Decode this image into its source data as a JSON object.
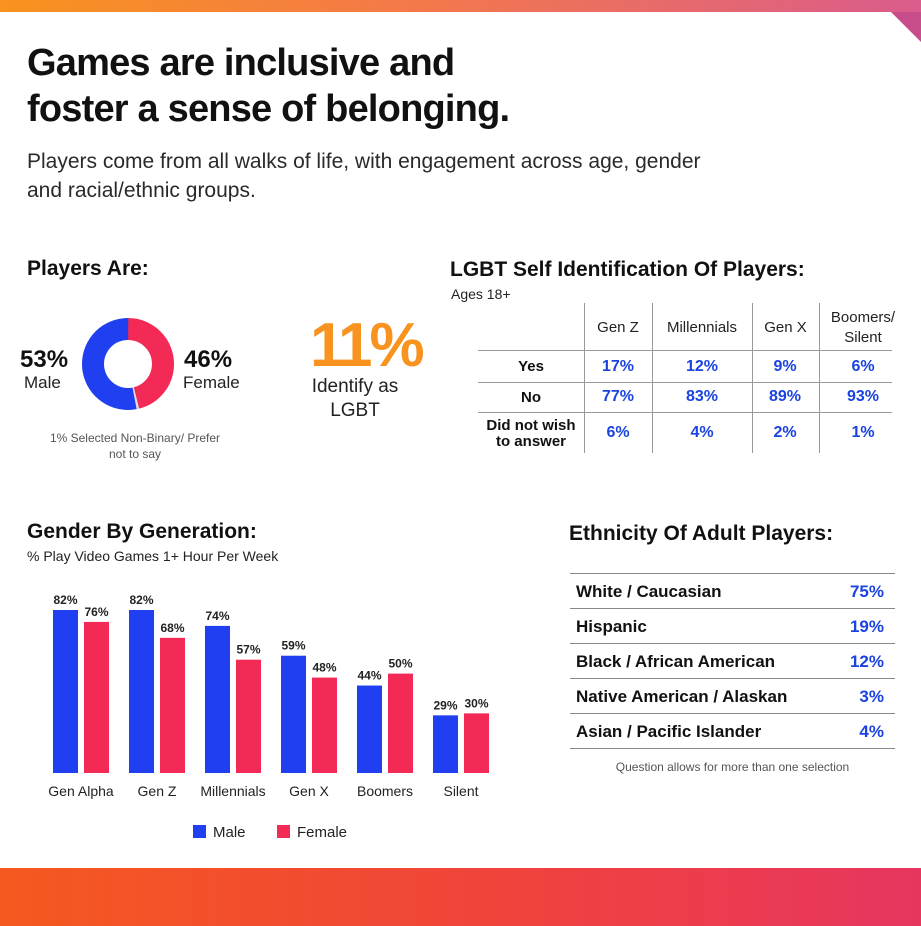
{
  "header": {
    "title": "Games are inclusive and\nfoster a sense of belonging.",
    "subtitle": "Players come from all walks of life, with engagement across age, gender and racial/ethnic groups."
  },
  "players_are": {
    "heading": "Players Are:",
    "male_pct": "53%",
    "male_label": "Male",
    "female_pct": "46%",
    "female_label": "Female",
    "note": "1% Selected Non-Binary/ Prefer not to say",
    "lgbt_pct": "11%",
    "lgbt_label": "Identify as LGBT",
    "colors": {
      "male": "#1f3ff0",
      "female": "#f22a55",
      "lgbt": "#f7931e"
    }
  },
  "lgbt_table": {
    "heading": "LGBT Self Identification Of Players:",
    "subheading": "Ages 18+",
    "columns": [
      "Gen Z",
      "Millennials",
      "Gen X",
      "Boomers/ Silent"
    ],
    "rows": [
      {
        "label": "Yes",
        "values": [
          "17%",
          "12%",
          "9%",
          "6%"
        ]
      },
      {
        "label": "No",
        "values": [
          "77%",
          "83%",
          "89%",
          "93%"
        ]
      },
      {
        "label": "Did not wish to answer",
        "values": [
          "6%",
          "4%",
          "2%",
          "1%"
        ]
      }
    ]
  },
  "gender_gen": {
    "heading": "Gender By Generation:",
    "subheading": "% Play Video Games 1+ Hour Per Week",
    "legend": {
      "male": "Male",
      "female": "Female"
    }
  },
  "chart_data": [
    {
      "type": "pie",
      "labels": [
        "Male",
        "Female",
        "Non-Binary/Prefer not to say"
      ],
      "values": [
        53,
        46,
        1
      ]
    },
    {
      "type": "bar",
      "title": "Gender By Generation:",
      "subtitle": "% Play Video Games 1+ Hour Per Week",
      "categories": [
        "Gen Alpha",
        "Gen Z",
        "Millennials",
        "Gen X",
        "Boomers",
        "Silent"
      ],
      "series": [
        {
          "name": "Male",
          "values": [
            82,
            82,
            74,
            59,
            44,
            29
          ],
          "color": "#1f3ff0"
        },
        {
          "name": "Female",
          "values": [
            76,
            68,
            57,
            48,
            50,
            30
          ],
          "color": "#f22a55"
        }
      ],
      "ylim": [
        0,
        82
      ],
      "legend": "bottom",
      "grid": false
    }
  ],
  "ethnicity": {
    "heading": "Ethnicity Of Adult Players:",
    "rows": [
      {
        "name": "White / Caucasian",
        "value": "75%"
      },
      {
        "name": "Hispanic",
        "value": "19%"
      },
      {
        "name": "Black / African American",
        "value": "12%"
      },
      {
        "name": "Native American / Alaskan",
        "value": "3%"
      },
      {
        "name": "Asian / Pacific Islander",
        "value": "4%"
      }
    ],
    "note": "Question allows for more than one selection"
  }
}
